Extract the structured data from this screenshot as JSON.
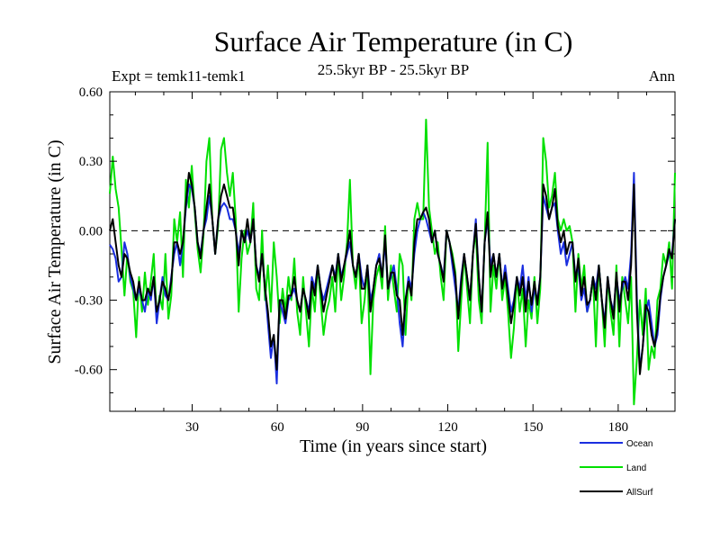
{
  "chart_data": {
    "type": "line",
    "title": "Surface Air Temperature (in C)",
    "subtitle": "25.5kyr BP - 25.5kyr BP",
    "expt_label": "Expt = temk11-temk1",
    "period_label": "Ann",
    "xlabel": "Time (in years since start)",
    "ylabel": "Surface Air Temperature (in C)",
    "xlim": [
      1,
      200
    ],
    "ylim": [
      -0.78,
      0.6
    ],
    "x_ticks": [
      30,
      60,
      90,
      120,
      150,
      180
    ],
    "x_tick_labels": [
      "30",
      "60",
      "90",
      "120",
      "150",
      "180"
    ],
    "y_ticks": [
      0.6,
      0.3,
      0.0,
      -0.3,
      -0.6
    ],
    "y_tick_labels": [
      "0.60",
      "0.30",
      "0.00",
      "-0.30",
      "-0.60"
    ],
    "zero_line": "dashed",
    "legend_position": "below-right",
    "series": [
      {
        "name": "Land",
        "color": "#00e000",
        "values": [
          0.16,
          0.32,
          0.18,
          0.1,
          -0.08,
          -0.28,
          -0.1,
          -0.22,
          -0.26,
          -0.46,
          -0.2,
          -0.35,
          -0.18,
          -0.32,
          -0.22,
          -0.1,
          -0.38,
          -0.28,
          -0.34,
          -0.1,
          -0.38,
          -0.28,
          0.05,
          -0.05,
          0.08,
          -0.2,
          0.22,
          0.1,
          0.28,
          0.08,
          -0.08,
          -0.18,
          -0.02,
          0.3,
          0.4,
          0.05,
          -0.1,
          0.02,
          0.35,
          0.4,
          0.25,
          0.15,
          0.25,
          0.05,
          -0.35,
          -0.12,
          0.0,
          -0.1,
          -0.05,
          0.12,
          -0.25,
          -0.3,
          0.0,
          -0.3,
          -0.15,
          -0.35,
          -0.05,
          -0.2,
          -0.4,
          -0.25,
          -0.35,
          -0.2,
          -0.3,
          -0.12,
          -0.35,
          -0.45,
          -0.2,
          -0.35,
          -0.5,
          -0.25,
          -0.35,
          -0.15,
          -0.3,
          -0.45,
          -0.35,
          -0.3,
          -0.2,
          -0.35,
          -0.1,
          -0.3,
          -0.2,
          -0.05,
          0.22,
          -0.15,
          -0.25,
          -0.1,
          -0.4,
          -0.3,
          -0.15,
          -0.62,
          -0.3,
          -0.2,
          -0.15,
          -0.25,
          0.02,
          -0.3,
          -0.15,
          -0.25,
          -0.35,
          -0.1,
          -0.15,
          -0.45,
          -0.2,
          -0.3,
          0.05,
          0.12,
          0.05,
          0.05,
          0.48,
          0.1,
          0.0,
          -0.1,
          -0.05,
          -0.2,
          -0.3,
          0.0,
          -0.05,
          -0.1,
          -0.18,
          -0.52,
          -0.3,
          -0.1,
          -0.25,
          -0.4,
          -0.1,
          0.0,
          -0.3,
          -0.4,
          -0.05,
          0.38,
          -0.35,
          -0.15,
          -0.25,
          -0.1,
          -0.3,
          -0.2,
          -0.35,
          -0.55,
          -0.42,
          -0.2,
          -0.35,
          -0.25,
          -0.5,
          -0.3,
          -0.38,
          -0.2,
          -0.4,
          -0.25,
          0.4,
          0.3,
          0.1,
          0.15,
          0.25,
          0.05,
          0.0,
          0.05,
          0.0,
          0.02,
          -0.05,
          -0.35,
          -0.1,
          -0.25,
          -0.15,
          -0.35,
          -0.3,
          -0.2,
          -0.5,
          -0.15,
          -0.3,
          -0.5,
          -0.2,
          -0.35,
          -0.45,
          -0.15,
          -0.5,
          -0.2,
          -0.3,
          -0.4,
          -0.2,
          -0.75,
          -0.55,
          -0.3,
          -0.45,
          -0.25,
          -0.6,
          -0.5,
          -0.55,
          -0.3,
          -0.25,
          -0.1,
          -0.15,
          -0.05,
          -0.25,
          0.25
        ]
      },
      {
        "name": "Ocean",
        "color": "#1a2ee0",
        "values": [
          -0.06,
          -0.08,
          -0.12,
          -0.22,
          -0.2,
          -0.05,
          -0.1,
          -0.2,
          -0.25,
          -0.3,
          -0.25,
          -0.3,
          -0.35,
          -0.25,
          -0.3,
          -0.2,
          -0.4,
          -0.3,
          -0.2,
          -0.28,
          -0.3,
          -0.2,
          -0.1,
          -0.05,
          -0.15,
          -0.05,
          0.1,
          0.2,
          0.18,
          0.1,
          -0.05,
          -0.1,
          0.0,
          0.05,
          0.15,
          0.05,
          -0.1,
          0.05,
          0.1,
          0.12,
          0.1,
          0.05,
          0.05,
          0.0,
          -0.1,
          0.0,
          -0.05,
          0.0,
          -0.05,
          0.05,
          -0.15,
          -0.2,
          -0.1,
          -0.25,
          -0.4,
          -0.55,
          -0.45,
          -0.66,
          -0.3,
          -0.35,
          -0.4,
          -0.3,
          -0.28,
          -0.25,
          -0.3,
          -0.35,
          -0.25,
          -0.3,
          -0.35,
          -0.2,
          -0.25,
          -0.15,
          -0.25,
          -0.3,
          -0.25,
          -0.2,
          -0.15,
          -0.2,
          -0.1,
          -0.2,
          -0.15,
          -0.1,
          -0.05,
          -0.15,
          -0.2,
          -0.1,
          -0.2,
          -0.25,
          -0.15,
          -0.3,
          -0.25,
          -0.15,
          -0.1,
          -0.2,
          -0.05,
          -0.25,
          -0.2,
          -0.15,
          -0.25,
          -0.4,
          -0.5,
          -0.3,
          -0.2,
          -0.25,
          -0.1,
          0.0,
          0.05,
          0.08,
          0.05,
          0.0,
          -0.05,
          0.0,
          -0.1,
          -0.15,
          -0.2,
          0.0,
          -0.05,
          -0.15,
          -0.25,
          -0.35,
          -0.2,
          -0.1,
          -0.2,
          -0.3,
          -0.1,
          0.05,
          -0.2,
          -0.35,
          -0.05,
          0.05,
          -0.15,
          -0.1,
          -0.2,
          -0.1,
          -0.25,
          -0.15,
          -0.25,
          -0.35,
          -0.3,
          -0.2,
          -0.25,
          -0.15,
          -0.3,
          -0.2,
          -0.35,
          -0.25,
          -0.3,
          -0.2,
          0.15,
          0.1,
          0.05,
          0.1,
          0.12,
          0.0,
          -0.1,
          -0.05,
          -0.15,
          -0.1,
          -0.05,
          -0.2,
          -0.15,
          -0.3,
          -0.25,
          -0.35,
          -0.3,
          -0.2,
          -0.25,
          -0.15,
          -0.3,
          -0.4,
          -0.2,
          -0.3,
          -0.35,
          -0.2,
          -0.3,
          -0.25,
          -0.2,
          -0.25,
          -0.1,
          0.25,
          -0.3,
          -0.6,
          -0.5,
          -0.35,
          -0.3,
          -0.4,
          -0.5,
          -0.45,
          -0.3,
          -0.2,
          -0.15,
          -0.1,
          -0.1,
          0.05
        ]
      },
      {
        "name": "AllSurf",
        "color": "#000000",
        "values": [
          0.0,
          0.05,
          -0.05,
          -0.15,
          -0.2,
          -0.1,
          -0.12,
          -0.18,
          -0.22,
          -0.3,
          -0.22,
          -0.3,
          -0.3,
          -0.25,
          -0.28,
          -0.2,
          -0.35,
          -0.3,
          -0.22,
          -0.25,
          -0.3,
          -0.22,
          -0.05,
          -0.05,
          -0.1,
          -0.05,
          0.12,
          0.25,
          0.2,
          0.1,
          -0.05,
          -0.12,
          0.0,
          0.1,
          0.2,
          0.05,
          -0.1,
          0.05,
          0.15,
          0.2,
          0.15,
          0.1,
          0.1,
          0.0,
          -0.15,
          0.0,
          -0.05,
          0.05,
          -0.05,
          0.05,
          -0.15,
          -0.22,
          -0.1,
          -0.25,
          -0.35,
          -0.5,
          -0.45,
          -0.6,
          -0.3,
          -0.3,
          -0.38,
          -0.28,
          -0.28,
          -0.2,
          -0.3,
          -0.35,
          -0.25,
          -0.3,
          -0.38,
          -0.22,
          -0.28,
          -0.15,
          -0.25,
          -0.35,
          -0.28,
          -0.22,
          -0.15,
          -0.22,
          -0.1,
          -0.22,
          -0.15,
          -0.08,
          0.0,
          -0.15,
          -0.2,
          -0.1,
          -0.25,
          -0.25,
          -0.15,
          -0.35,
          -0.25,
          -0.15,
          -0.12,
          -0.2,
          -0.02,
          -0.25,
          -0.18,
          -0.18,
          -0.28,
          -0.3,
          -0.45,
          -0.3,
          -0.22,
          -0.28,
          -0.05,
          0.05,
          0.05,
          0.08,
          0.1,
          0.05,
          -0.05,
          0.0,
          -0.1,
          -0.15,
          -0.22,
          0.0,
          -0.05,
          -0.12,
          -0.2,
          -0.38,
          -0.22,
          -0.1,
          -0.2,
          -0.3,
          -0.1,
          0.03,
          -0.2,
          -0.35,
          -0.05,
          0.08,
          -0.2,
          -0.1,
          -0.2,
          -0.1,
          -0.25,
          -0.18,
          -0.28,
          -0.4,
          -0.32,
          -0.2,
          -0.28,
          -0.2,
          -0.35,
          -0.22,
          -0.32,
          -0.22,
          -0.32,
          -0.2,
          0.2,
          0.15,
          0.05,
          0.1,
          0.18,
          0.02,
          -0.05,
          0.0,
          -0.1,
          -0.05,
          -0.05,
          -0.22,
          -0.12,
          -0.28,
          -0.2,
          -0.32,
          -0.3,
          -0.2,
          -0.3,
          -0.15,
          -0.3,
          -0.42,
          -0.2,
          -0.3,
          -0.38,
          -0.18,
          -0.35,
          -0.22,
          -0.22,
          -0.3,
          -0.15,
          0.2,
          -0.35,
          -0.62,
          -0.5,
          -0.32,
          -0.35,
          -0.45,
          -0.5,
          -0.42,
          -0.28,
          -0.2,
          -0.15,
          -0.08,
          -0.12,
          0.05
        ]
      }
    ]
  }
}
